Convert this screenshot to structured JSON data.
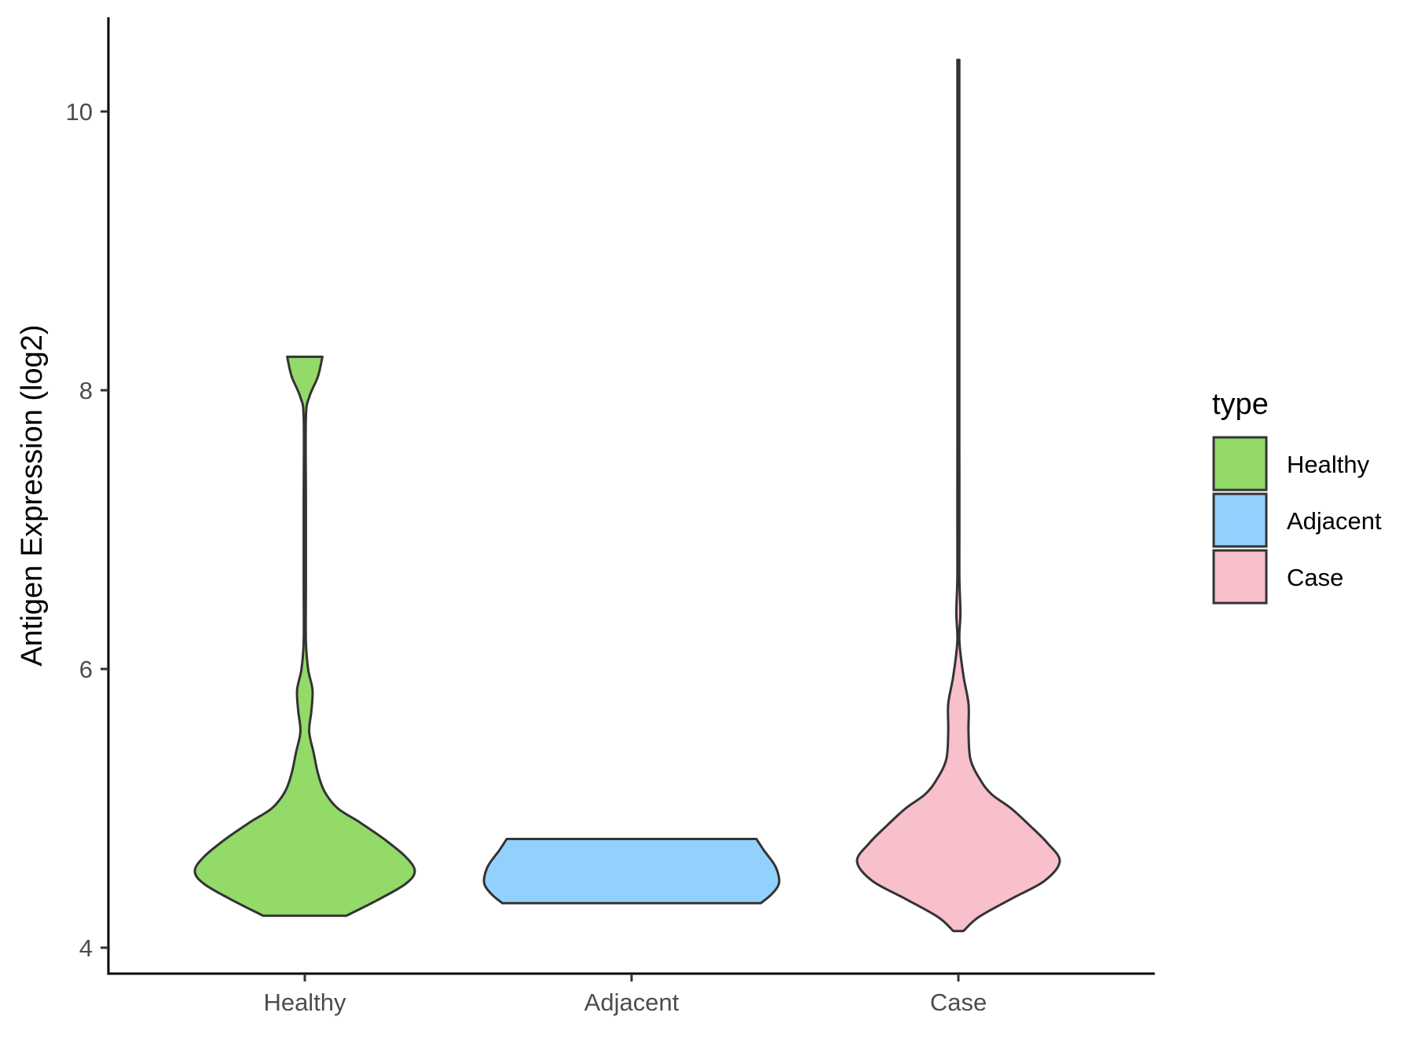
{
  "chart_data": {
    "type": "violin",
    "ylabel": "Antigen Expression (log2)",
    "xlabel": "",
    "ylim": [
      3.8,
      10.7
    ],
    "yticks": [
      4,
      6,
      8,
      10
    ],
    "categories": [
      "Healthy",
      "Adjacent",
      "Case"
    ],
    "legend": {
      "title": "type",
      "position": "right",
      "items": [
        {
          "label": "Healthy",
          "color": "#93DA69"
        },
        {
          "label": "Adjacent",
          "color": "#92D1FD"
        },
        {
          "label": "Case",
          "color": "#F7C0CB"
        }
      ]
    },
    "grid": false,
    "series": [
      {
        "category": "Healthy",
        "color": "#93DA69",
        "ymin": 4.23,
        "ymax": 8.24,
        "density": [
          [
            4.23,
            0.38
          ],
          [
            4.35,
            0.68
          ],
          [
            4.46,
            0.92
          ],
          [
            4.55,
            1.0
          ],
          [
            4.65,
            0.92
          ],
          [
            4.78,
            0.72
          ],
          [
            4.9,
            0.5
          ],
          [
            5.0,
            0.3
          ],
          [
            5.12,
            0.18
          ],
          [
            5.25,
            0.12
          ],
          [
            5.4,
            0.08
          ],
          [
            5.55,
            0.04
          ],
          [
            5.7,
            0.06
          ],
          [
            5.85,
            0.07
          ],
          [
            6.0,
            0.03
          ],
          [
            6.2,
            0.01
          ],
          [
            6.6,
            0.01
          ],
          [
            7.2,
            0.01
          ],
          [
            7.8,
            0.01
          ],
          [
            7.95,
            0.04
          ],
          [
            8.1,
            0.12
          ],
          [
            8.24,
            0.16
          ]
        ]
      },
      {
        "category": "Adjacent",
        "color": "#92D1FD",
        "ymin": 4.32,
        "ymax": 4.78,
        "density": [
          [
            4.32,
            0.88
          ],
          [
            4.38,
            0.95
          ],
          [
            4.45,
            1.0
          ],
          [
            4.52,
            1.0
          ],
          [
            4.6,
            0.97
          ],
          [
            4.7,
            0.9
          ],
          [
            4.78,
            0.85
          ]
        ]
      },
      {
        "category": "Case",
        "color": "#F7C0CB",
        "ymin": 4.12,
        "ymax": 10.37,
        "density": [
          [
            4.12,
            0.05
          ],
          [
            4.22,
            0.2
          ],
          [
            4.35,
            0.52
          ],
          [
            4.48,
            0.85
          ],
          [
            4.62,
            1.0
          ],
          [
            4.75,
            0.88
          ],
          [
            4.88,
            0.7
          ],
          [
            5.0,
            0.52
          ],
          [
            5.1,
            0.33
          ],
          [
            5.2,
            0.22
          ],
          [
            5.35,
            0.12
          ],
          [
            5.55,
            0.1
          ],
          [
            5.75,
            0.1
          ],
          [
            5.95,
            0.05
          ],
          [
            6.2,
            0.01
          ],
          [
            6.4,
            0.02
          ],
          [
            6.65,
            0.01
          ],
          [
            7.0,
            0.01
          ],
          [
            7.3,
            0.01
          ],
          [
            7.6,
            0.006
          ],
          [
            8.0,
            0.006
          ],
          [
            8.5,
            0.004
          ],
          [
            9.5,
            0.004
          ],
          [
            10.37,
            0.004
          ]
        ]
      }
    ]
  }
}
